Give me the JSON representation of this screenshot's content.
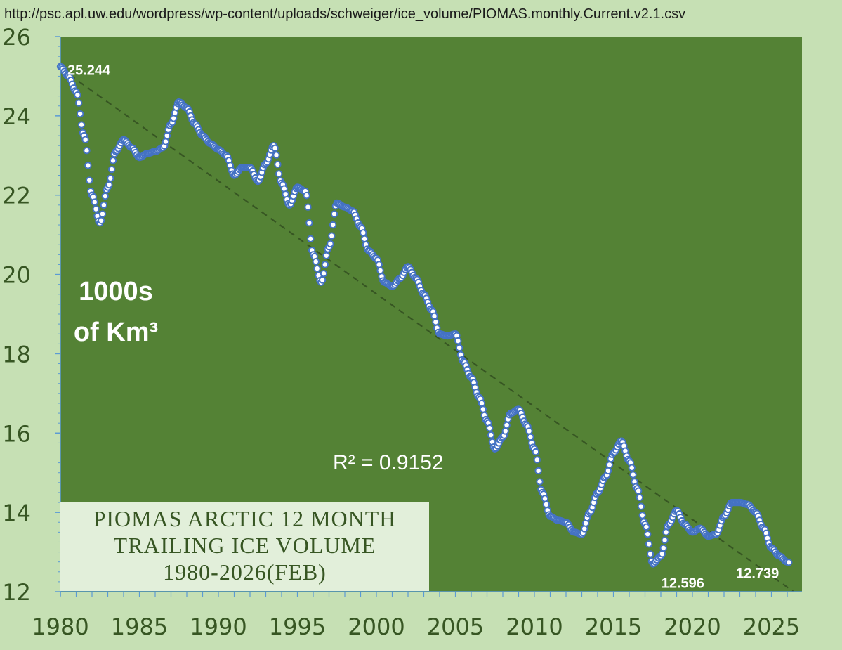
{
  "source_url": "http://psc.apl.uw.edu/wordpress/wp-content/uploads/schweiger/ice_volume/PIOMAS.monthly.Current.v2.1.csv",
  "colors": {
    "background": "#c6e0b4",
    "plot_area": "#548235",
    "axis_text": "#375623",
    "marker_fill": "#ffffff",
    "marker_stroke": "#4472c4",
    "trendline": "#375623",
    "title_box": "#e2efda"
  },
  "chart_data": {
    "type": "scatter",
    "title_lines": [
      "PIOMAS ARCTIC 12 MONTH",
      "TRAILING ICE VOLUME",
      "1980-2026(FEB)"
    ],
    "ylabel_lines": [
      "1000s",
      "of Km³"
    ],
    "xlim": [
      1980,
      2026.5
    ],
    "ylim": [
      12,
      26
    ],
    "x_ticks": [
      "1980",
      "1985",
      "1990",
      "1995",
      "2000",
      "2005",
      "2010",
      "2015",
      "2020",
      "2025"
    ],
    "y_ticks": [
      "12",
      "14",
      "16",
      "18",
      "20",
      "22",
      "24",
      "26"
    ],
    "grid": false,
    "series": [
      {
        "marker": "circle",
        "x": [
          1980.0,
          1980.5,
          1981.0,
          1981.5,
          1982.0,
          1982.5,
          1983.0,
          1983.5,
          1984.0,
          1984.5,
          1985.0,
          1985.5,
          1986.0,
          1986.5,
          1987.0,
          1987.5,
          1988.0,
          1988.5,
          1989.0,
          1989.5,
          1990.0,
          1990.5,
          1991.0,
          1991.5,
          1992.0,
          1992.5,
          1993.0,
          1993.5,
          1994.0,
          1994.5,
          1995.0,
          1995.5,
          1996.0,
          1996.5,
          1997.0,
          1997.5,
          1998.0,
          1998.5,
          1999.0,
          1999.5,
          2000.0,
          2000.5,
          2001.0,
          2001.5,
          2002.0,
          2002.5,
          2003.0,
          2003.5,
          2004.0,
          2004.5,
          2005.0,
          2005.5,
          2006.0,
          2006.5,
          2007.0,
          2007.5,
          2008.0,
          2008.5,
          2009.0,
          2009.5,
          2010.0,
          2010.5,
          2011.0,
          2011.5,
          2012.0,
          2012.5,
          2013.0,
          2013.5,
          2014.0,
          2014.5,
          2015.0,
          2015.5,
          2016.0,
          2016.5,
          2017.0,
          2017.5,
          2018.0,
          2018.5,
          2019.0,
          2019.5,
          2020.0,
          2020.5,
          2021.0,
          2021.5,
          2022.0,
          2022.5,
          2023.0,
          2023.5,
          2024.0,
          2024.5,
          2025.0,
          2025.5,
          2026.0,
          2026.1
        ],
        "y": [
          25.244,
          25.0,
          24.6,
          23.5,
          22.0,
          21.3,
          22.2,
          23.1,
          23.4,
          23.2,
          22.95,
          23.05,
          23.1,
          23.2,
          23.8,
          24.35,
          24.2,
          23.8,
          23.5,
          23.3,
          23.15,
          23.0,
          22.5,
          22.7,
          22.7,
          22.35,
          22.8,
          23.25,
          22.3,
          21.75,
          22.2,
          22.1,
          20.5,
          19.8,
          20.7,
          21.8,
          21.7,
          21.6,
          21.2,
          20.6,
          20.4,
          19.8,
          19.7,
          19.9,
          20.2,
          19.9,
          19.5,
          19.1,
          18.5,
          18.45,
          18.5,
          17.8,
          17.4,
          16.9,
          16.3,
          15.6,
          15.9,
          16.5,
          16.6,
          16.2,
          15.6,
          14.5,
          13.9,
          13.8,
          13.75,
          13.5,
          13.45,
          14.0,
          14.5,
          14.9,
          15.5,
          15.8,
          15.3,
          14.6,
          13.7,
          12.7,
          12.9,
          13.7,
          14.05,
          13.7,
          13.5,
          13.6,
          13.4,
          13.45,
          13.9,
          14.25,
          14.25,
          14.2,
          14.0,
          13.6,
          13.1,
          12.9,
          12.75,
          12.739
        ],
        "annotations": [
          {
            "x": 1980.0,
            "y": 25.244,
            "label": "25.244"
          },
          {
            "x": 2017.5,
            "y": 12.596,
            "label": "12.596"
          },
          {
            "x": 2026.1,
            "y": 12.739,
            "label": "12.739"
          }
        ]
      }
    ],
    "trendline": {
      "type": "linear",
      "x": [
        1980.0,
        2026.4
      ],
      "y": [
        25.2,
        12.0
      ],
      "style": "dashed",
      "r_squared_label": "R² = 0.9152"
    }
  }
}
